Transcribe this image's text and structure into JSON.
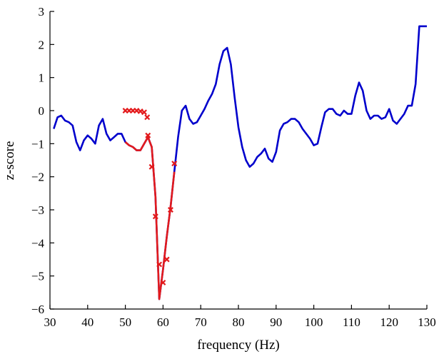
{
  "chart_data": {
    "type": "line",
    "xlabel": "frequency (Hz)",
    "ylabel": "z-score",
    "xlim": [
      30,
      130
    ],
    "ylim": [
      -6,
      3
    ],
    "xticks": [
      30,
      40,
      50,
      60,
      70,
      80,
      90,
      100,
      110,
      120,
      130
    ],
    "yticks": [
      3,
      2,
      1,
      0,
      -1,
      -2,
      -3,
      -4,
      -5,
      -6
    ],
    "grid": false,
    "series": [
      {
        "color": "#0000cc",
        "x": [
          31,
          32,
          33,
          34,
          35,
          36,
          37,
          38,
          39,
          40,
          41,
          42,
          43,
          44,
          45,
          46,
          47,
          48,
          49,
          50,
          51,
          52,
          53,
          54,
          55,
          56,
          57,
          58,
          59,
          60,
          61,
          62,
          63,
          64,
          65,
          66,
          67,
          68,
          69,
          70,
          71,
          72,
          73,
          74,
          75,
          76,
          77,
          78,
          79,
          80,
          81,
          82,
          83,
          84,
          85,
          86,
          87,
          88,
          89,
          90,
          91,
          92,
          93,
          94,
          95,
          96,
          97,
          98,
          99,
          100,
          101,
          102,
          103,
          104,
          105,
          106,
          107,
          108,
          109,
          110,
          111,
          112,
          113,
          114,
          115,
          116,
          117,
          118,
          119,
          120,
          121,
          122,
          123,
          124,
          125,
          126,
          127,
          128,
          129,
          130
        ],
        "y": [
          -0.55,
          -0.2,
          -0.15,
          -0.3,
          -0.35,
          -0.45,
          -0.95,
          -1.2,
          -0.9,
          -0.75,
          -0.85,
          -1.0,
          -0.45,
          -0.25,
          -0.7,
          -0.9,
          -0.8,
          -0.7,
          -0.7,
          -0.95,
          -1.05,
          -1.1,
          -1.2,
          -1.2,
          -1.0,
          -0.8,
          -1.1,
          -2.6,
          -5.7,
          -4.8,
          -3.8,
          -2.9,
          -1.85,
          -0.8,
          0.0,
          0.15,
          -0.25,
          -0.4,
          -0.35,
          -0.15,
          0.05,
          0.3,
          0.5,
          0.8,
          1.4,
          1.8,
          1.9,
          1.4,
          0.4,
          -0.5,
          -1.1,
          -1.5,
          -1.7,
          -1.6,
          -1.4,
          -1.3,
          -1.15,
          -1.45,
          -1.55,
          -1.25,
          -0.6,
          -0.4,
          -0.35,
          -0.25,
          -0.25,
          -0.35,
          -0.55,
          -0.7,
          -0.85,
          -1.05,
          -1.0,
          -0.5,
          -0.05,
          0.05,
          0.05,
          -0.1,
          -0.15,
          0.0,
          -0.1,
          -0.1,
          0.45,
          0.85,
          0.6,
          0.0,
          -0.25,
          -0.15,
          -0.15,
          -0.25,
          -0.2,
          0.05,
          -0.3,
          -0.4,
          -0.25,
          -0.1,
          0.15,
          0.15,
          0.8,
          2.55,
          2.55,
          2.55
        ]
      },
      {
        "color": "#e31a1c",
        "x": [
          50,
          51,
          52,
          53,
          54,
          55,
          56,
          57,
          58,
          59,
          60,
          61,
          62,
          63
        ],
        "y": [
          -0.95,
          -1.05,
          -1.1,
          -1.2,
          -1.2,
          -1.0,
          -0.8,
          -1.1,
          -2.6,
          -5.7,
          -4.8,
          -3.8,
          -2.9,
          -1.85
        ]
      },
      {
        "color": "#e31a1c",
        "marker": "x",
        "x": [
          50,
          51,
          52,
          53,
          54,
          55,
          55.8,
          56,
          57,
          58,
          59,
          60,
          61,
          62,
          63
        ],
        "y": [
          0.0,
          0.0,
          0.0,
          0.0,
          -0.02,
          -0.05,
          -0.2,
          -0.75,
          -1.7,
          -3.2,
          -4.65,
          -5.2,
          -4.5,
          -3.0,
          -1.6
        ]
      }
    ]
  }
}
